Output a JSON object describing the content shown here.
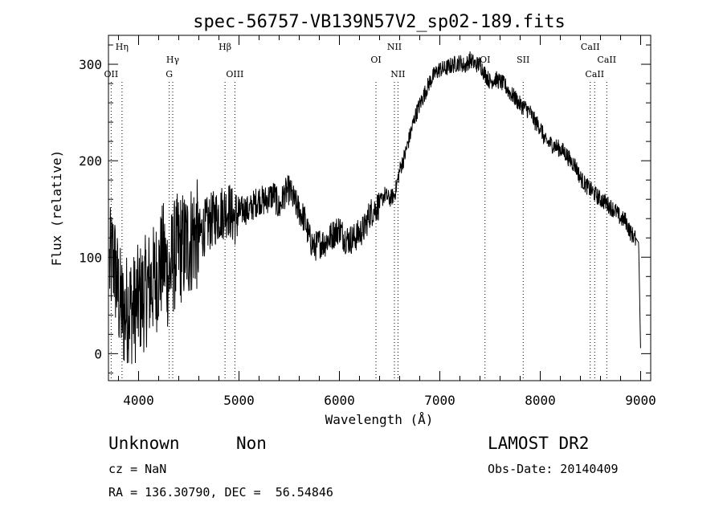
{
  "chart_data": {
    "type": "line",
    "title": "spec-56757-VB139N57V2_sp02-189.fits",
    "xlabel": "Wavelength (Å)",
    "ylabel": "Flux (relative)",
    "xlim": [
      3700,
      9100
    ],
    "ylim": [
      -28,
      330
    ],
    "xticks": [
      4000,
      5000,
      6000,
      7000,
      8000,
      9000
    ],
    "yticks": [
      0,
      100,
      200,
      300
    ],
    "x_tick_labels": [
      "4000",
      "5000",
      "6000",
      "7000",
      "8000",
      "9000"
    ],
    "y_tick_labels": [
      "0",
      "100",
      "200",
      "300"
    ],
    "series": [
      {
        "x": [
          3710,
          3750,
          3800,
          3850,
          3900,
          3950,
          4000,
          4050,
          4100,
          4150,
          4200,
          4250,
          4300,
          4350,
          4400,
          4450,
          4500,
          4550,
          4600,
          4650,
          4700,
          4750,
          4800,
          4850,
          4900,
          4950,
          5000,
          5050,
          5100,
          5150,
          5200,
          5250,
          5300,
          5350,
          5400,
          5450,
          5500,
          5550,
          5600,
          5650,
          5700,
          5750,
          5800,
          5850,
          5900,
          5950,
          6000,
          6050,
          6100,
          6150,
          6200,
          6250,
          6300,
          6350,
          6400,
          6450,
          6500,
          6550,
          6600,
          6650,
          6700,
          6750,
          6800,
          6850,
          6900,
          6950,
          7000,
          7050,
          7100,
          7150,
          7200,
          7250,
          7300,
          7350,
          7400,
          7450,
          7500,
          7550,
          7600,
          7650,
          7700,
          7750,
          7800,
          7850,
          7900,
          7950,
          8000,
          8050,
          8100,
          8150,
          8200,
          8250,
          8300,
          8350,
          8400,
          8450,
          8500,
          8550,
          8600,
          8650,
          8700,
          8750,
          8800,
          8850,
          8900,
          8950,
          8980,
          9000
        ],
        "y": [
          90,
          100,
          60,
          40,
          50,
          45,
          55,
          60,
          70,
          75,
          85,
          100,
          80,
          100,
          110,
          110,
          115,
          125,
          120,
          130,
          135,
          140,
          145,
          148,
          150,
          140,
          145,
          150,
          148,
          155,
          160,
          158,
          162,
          165,
          150,
          165,
          170,
          158,
          148,
          140,
          120,
          110,
          115,
          115,
          120,
          125,
          130,
          120,
          118,
          120,
          125,
          130,
          145,
          150,
          155,
          165,
          160,
          165,
          190,
          205,
          225,
          245,
          258,
          270,
          282,
          290,
          295,
          295,
          298,
          300,
          302,
          298,
          305,
          300,
          300,
          290,
          282,
          285,
          282,
          278,
          270,
          265,
          258,
          255,
          250,
          240,
          235,
          220,
          218,
          215,
          212,
          208,
          200,
          195,
          182,
          175,
          170,
          165,
          160,
          157,
          152,
          148,
          140,
          138,
          125,
          120,
          115,
          0
        ]
      }
    ],
    "line_markers": [
      {
        "label": "Hη",
        "x": 3835,
        "row": 1
      },
      {
        "label": "OII",
        "x": 3727,
        "row": 3
      },
      {
        "label": "Hγ",
        "x": 4340,
        "row": 2
      },
      {
        "label": "G",
        "x": 4305,
        "row": 3
      },
      {
        "label": "Hβ",
        "x": 4861,
        "row": 1
      },
      {
        "label": "OIII",
        "x": 4959,
        "row": 3
      },
      {
        "label": "OI",
        "x": 6364,
        "row": 2
      },
      {
        "label": "NII",
        "x": 6548,
        "row": 1
      },
      {
        "label": "NII",
        "x": 6583,
        "row": 3
      },
      {
        "label": "OI",
        "x": 7450,
        "row": 2
      },
      {
        "label": "SII",
        "x": 7830,
        "row": 2
      },
      {
        "label": "CaII",
        "x": 8498,
        "row": 1
      },
      {
        "label": "CaII",
        "x": 8542,
        "row": 3
      },
      {
        "label": "CaII",
        "x": 8662,
        "row": 2
      }
    ]
  },
  "footer": {
    "class": "Unknown",
    "subclass": "Non",
    "survey": "LAMOST DR2",
    "redshift": "cz = NaN",
    "obs_date": "Obs-Date: 20140409",
    "coords": "RA = 136.30790, DEC =  56.54846"
  }
}
